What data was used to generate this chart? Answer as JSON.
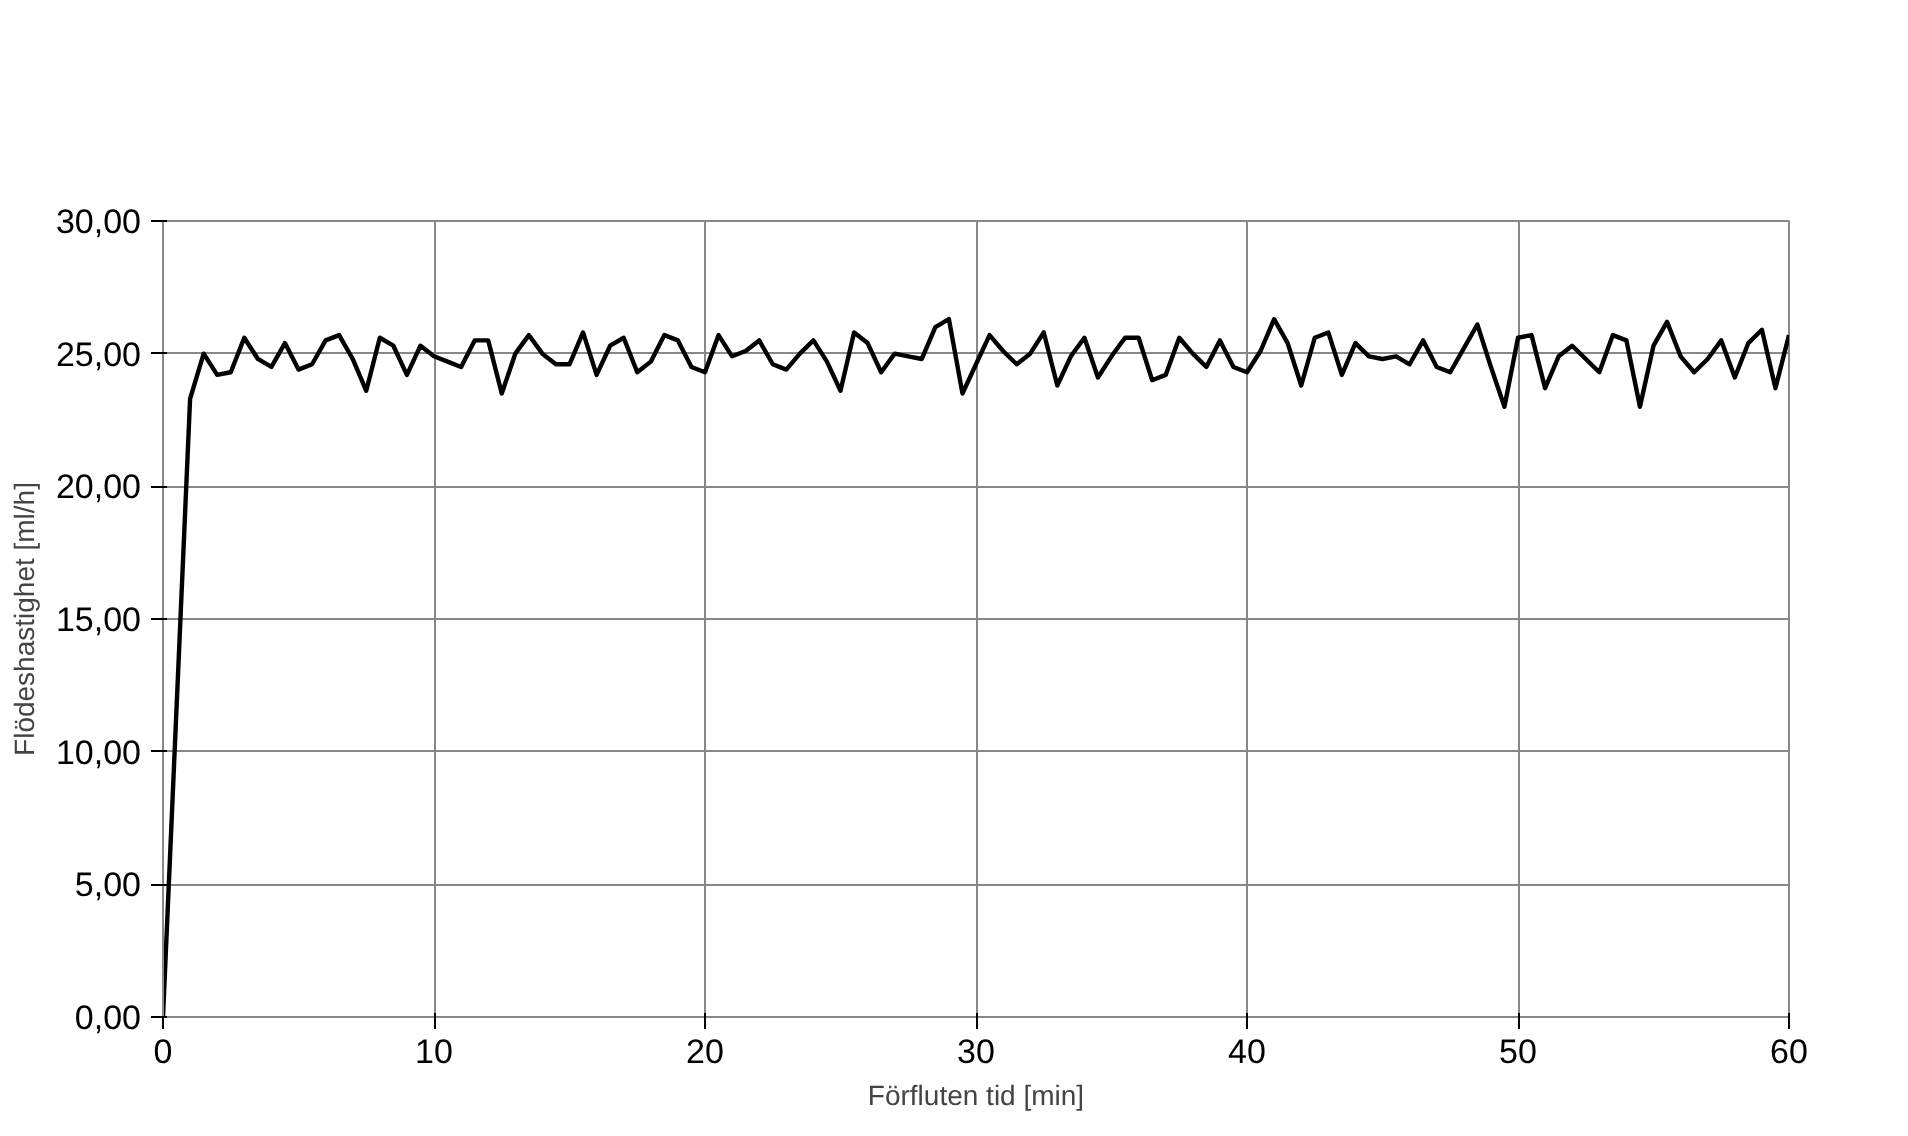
{
  "chart_data": {
    "type": "line",
    "xlabel": "Förfluten tid [min]",
    "ylabel": "Flödeshastighet [ml/h]",
    "xlim": [
      0,
      60
    ],
    "ylim": [
      0,
      30
    ],
    "xticks": [
      0,
      10,
      20,
      30,
      40,
      50,
      60
    ],
    "yticks": [
      {
        "value": 0,
        "label": "0,00"
      },
      {
        "value": 5,
        "label": "5,00"
      },
      {
        "value": 10,
        "label": "10,00"
      },
      {
        "value": 15,
        "label": "15,00"
      },
      {
        "value": 20,
        "label": "20,00"
      },
      {
        "value": 25,
        "label": "25,00"
      },
      {
        "value": 30,
        "label": "30,00"
      }
    ],
    "grid": true,
    "marker": "none",
    "line_style": "solid",
    "x": [
      0,
      1,
      1.5,
      2,
      2.5,
      3,
      3.5,
      4,
      4.5,
      5,
      5.5,
      6,
      6.5,
      7,
      7.5,
      8,
      8.5,
      9,
      9.5,
      10,
      10.5,
      11,
      11.5,
      12,
      12.5,
      13,
      13.5,
      14,
      14.5,
      15,
      15.5,
      16,
      16.5,
      17,
      17.5,
      18,
      18.5,
      19,
      19.5,
      20,
      20.5,
      21,
      21.5,
      22,
      22.5,
      23,
      23.5,
      24,
      24.5,
      25,
      25.5,
      26,
      26.5,
      27,
      27.5,
      28,
      28.5,
      29,
      29.5,
      30,
      30.5,
      31,
      31.5,
      32,
      32.5,
      33,
      33.5,
      34,
      34.5,
      35,
      35.5,
      36,
      36.5,
      37,
      37.5,
      38,
      38.5,
      39,
      39.5,
      40,
      40.5,
      41,
      41.5,
      42,
      42.5,
      43,
      43.5,
      44,
      44.5,
      45,
      45.5,
      46,
      46.5,
      47,
      47.5,
      48,
      48.5,
      49,
      49.5,
      50,
      50.5,
      51,
      51.5,
      52,
      52.5,
      53,
      53.5,
      54,
      54.5,
      55,
      55.5,
      56,
      56.5,
      57,
      57.5,
      58,
      58.5,
      59,
      59.5,
      60
    ],
    "series": [
      {
        "color": "#000000",
        "values": [
          0,
          23.3,
          25.0,
          24.2,
          24.3,
          25.6,
          24.8,
          24.5,
          25.4,
          24.4,
          24.6,
          25.5,
          25.7,
          24.8,
          23.6,
          25.6,
          25.3,
          24.2,
          25.3,
          24.9,
          24.7,
          24.5,
          25.5,
          25.5,
          23.5,
          25.0,
          25.7,
          25.0,
          24.6,
          24.6,
          25.8,
          24.2,
          25.3,
          25.6,
          24.3,
          24.7,
          25.7,
          25.5,
          24.5,
          24.3,
          25.7,
          24.9,
          25.1,
          25.5,
          24.6,
          24.4,
          25.0,
          25.5,
          24.7,
          23.6,
          25.8,
          25.4,
          24.3,
          25.0,
          24.9,
          24.8,
          26.0,
          26.3,
          23.5,
          24.6,
          25.7,
          25.1,
          24.6,
          25.0,
          25.8,
          23.8,
          24.9,
          25.6,
          24.1,
          24.9,
          25.6,
          25.6,
          24.0,
          24.2,
          25.6,
          25.0,
          24.5,
          25.5,
          24.5,
          24.3,
          25.1,
          26.3,
          25.4,
          23.8,
          25.6,
          25.8,
          24.2,
          25.4,
          24.9,
          24.8,
          24.9,
          24.6,
          25.5,
          24.5,
          24.3,
          25.2,
          26.1,
          24.5,
          23.0,
          25.6,
          25.7,
          23.7,
          24.9,
          25.3,
          24.8,
          24.3,
          25.7,
          25.5,
          23.0,
          25.3,
          26.2,
          24.9,
          24.3,
          24.8,
          25.5,
          24.1,
          25.4,
          25.9,
          23.7,
          25.7
        ]
      }
    ]
  }
}
